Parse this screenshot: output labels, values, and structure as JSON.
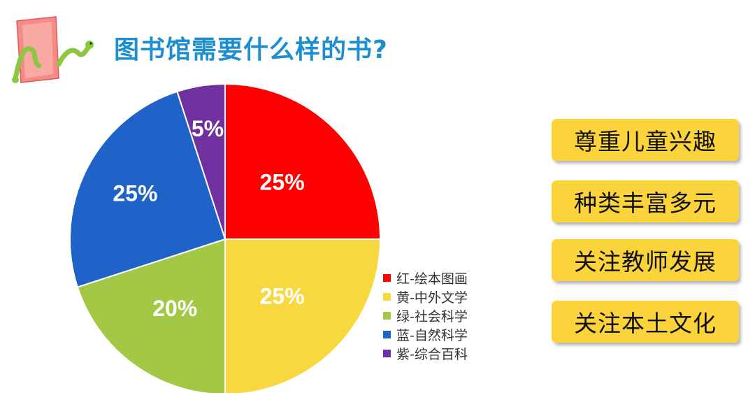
{
  "header": {
    "title": "图书馆需要什么样的书?"
  },
  "chart_data": {
    "type": "pie",
    "categories": [
      "红-绘本图画",
      "黄-中外文学",
      "绿-社会科学",
      "蓝-自然科学",
      "紫-综合百科"
    ],
    "values": [
      25,
      25,
      20,
      25,
      5
    ],
    "labels": [
      "25%",
      "25%",
      "20%",
      "25%",
      "5%"
    ],
    "colors": [
      "#ff0000",
      "#f7d93f",
      "#a3c845",
      "#1f62c8",
      "#7030a0"
    ],
    "legend_position": "bottom-right",
    "start": "12 o'clock",
    "direction": "clockwise"
  },
  "tags": [
    {
      "label": "尊重儿童兴趣"
    },
    {
      "label": "种类丰富多元"
    },
    {
      "label": "关注教师发展"
    },
    {
      "label": "关注本土文化"
    }
  ],
  "colors": {
    "title": "#1d8fd0",
    "tag_background": "#fbd33a"
  }
}
